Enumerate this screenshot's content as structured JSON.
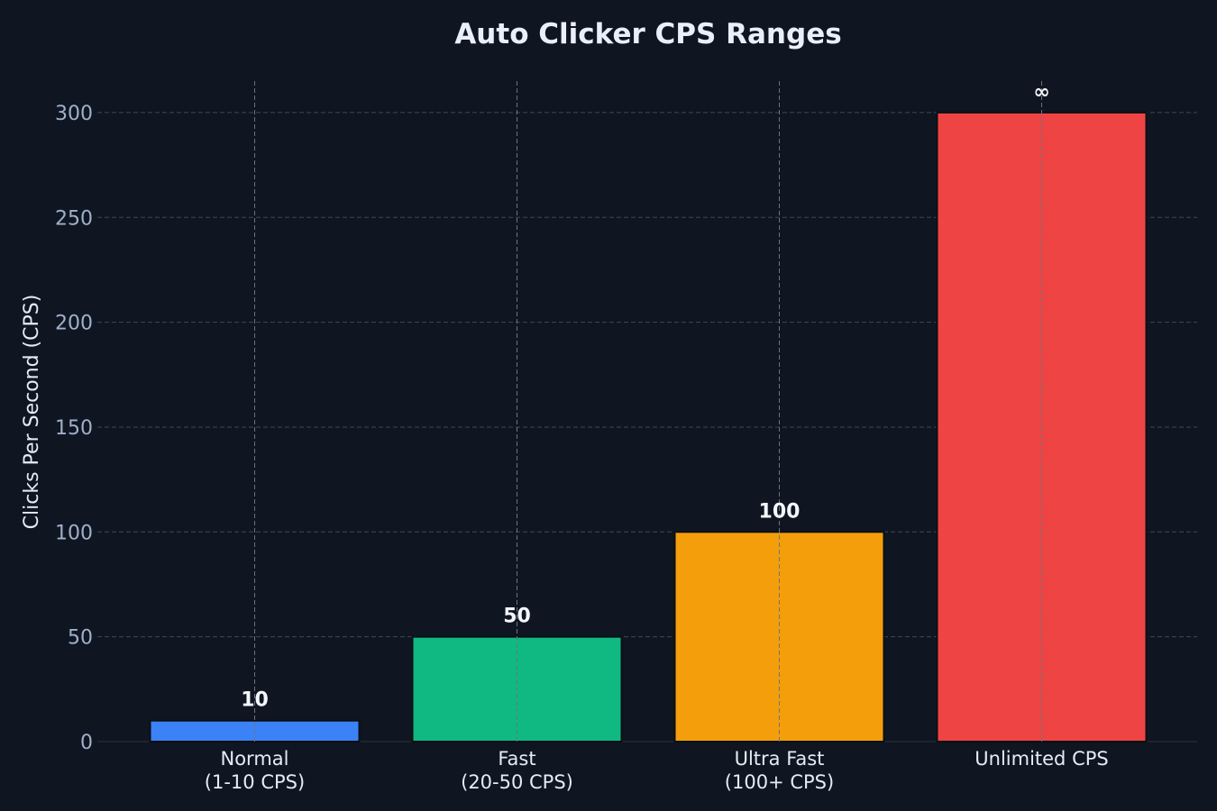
{
  "chart_data": {
    "type": "bar",
    "title": "Auto Clicker CPS Ranges",
    "xlabel": "",
    "ylabel": "Clicks Per Second (CPS)",
    "categories": [
      [
        "Normal",
        "(1-10 CPS)"
      ],
      [
        "Fast",
        "(20-50 CPS)"
      ],
      [
        "Ultra Fast",
        "(100+ CPS)"
      ],
      [
        "Unlimited CPS"
      ]
    ],
    "values": [
      10,
      50,
      100,
      300
    ],
    "data_labels": [
      "10",
      "50",
      "100",
      "∞"
    ],
    "colors": [
      "#3b82f6",
      "#10b981",
      "#f59e0b",
      "#ef4444"
    ],
    "ylim": [
      0,
      315
    ],
    "yticks": [
      0,
      50,
      100,
      150,
      200,
      250,
      300
    ],
    "grid": true,
    "legend": "none"
  }
}
